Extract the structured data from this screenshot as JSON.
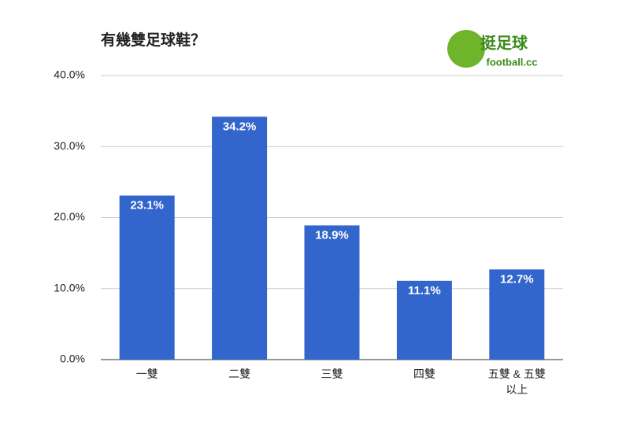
{
  "chart_data": {
    "type": "bar",
    "title": "有幾雙足球鞋？",
    "categories": [
      "一雙",
      "二雙",
      "三雙",
      "四雙",
      "五雙 & 五雙以上"
    ],
    "values": [
      23.1,
      34.2,
      18.9,
      11.1,
      12.7
    ],
    "value_labels": [
      "23.1%",
      "34.2%",
      "18.9%",
      "11.1%",
      "12.7%"
    ],
    "color": "#3366cc",
    "ylim": [
      0,
      40
    ],
    "yticks": [
      {
        "value": 0,
        "label": "0.0%"
      },
      {
        "value": 10,
        "label": "10.0%"
      },
      {
        "value": 20,
        "label": "20.0%"
      },
      {
        "value": 30,
        "label": "30.0%"
      },
      {
        "value": 40,
        "label": "40.0%"
      }
    ],
    "grid": true
  },
  "logo": {
    "name": "挺足球",
    "site": "football.cc"
  }
}
